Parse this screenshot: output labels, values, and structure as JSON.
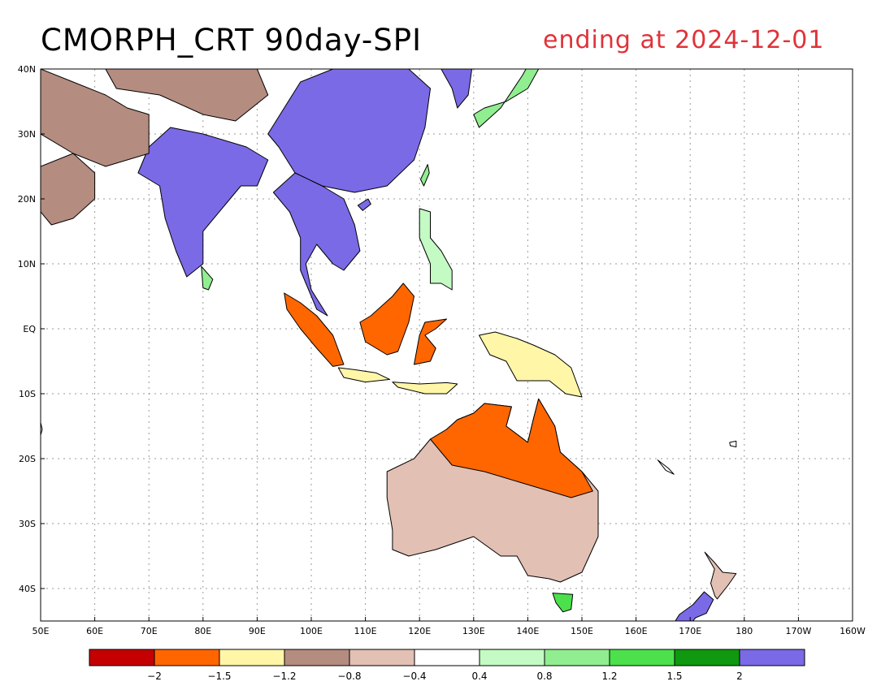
{
  "title": "CMORPH_CRT 90day-SPI",
  "subtitle": "ending at 2024-12-01",
  "map": {
    "lon_min": 50,
    "lon_max": 200,
    "lat_min": -45,
    "lat_max": 40,
    "lon_ticks": [
      {
        "value": 50,
        "label": "50E"
      },
      {
        "value": 60,
        "label": "60E"
      },
      {
        "value": 70,
        "label": "70E"
      },
      {
        "value": 80,
        "label": "80E"
      },
      {
        "value": 90,
        "label": "90E"
      },
      {
        "value": 100,
        "label": "100E"
      },
      {
        "value": 110,
        "label": "110E"
      },
      {
        "value": 120,
        "label": "120E"
      },
      {
        "value": 130,
        "label": "130E"
      },
      {
        "value": 140,
        "label": "140E"
      },
      {
        "value": 150,
        "label": "150E"
      },
      {
        "value": 160,
        "label": "160E"
      },
      {
        "value": 170,
        "label": "170E"
      },
      {
        "value": 180,
        "label": "180"
      },
      {
        "value": 190,
        "label": "170W"
      },
      {
        "value": 200,
        "label": "160W"
      }
    ],
    "lat_ticks": [
      {
        "value": 40,
        "label": "40N"
      },
      {
        "value": 30,
        "label": "30N"
      },
      {
        "value": 20,
        "label": "20N"
      },
      {
        "value": 10,
        "label": "10N"
      },
      {
        "value": 0,
        "label": "EQ"
      },
      {
        "value": -10,
        "label": "10S"
      },
      {
        "value": -20,
        "label": "20S"
      },
      {
        "value": -30,
        "label": "30S"
      },
      {
        "value": -40,
        "label": "40S"
      }
    ],
    "grid": true,
    "regions": [
      {
        "name": "India",
        "category": 10,
        "points": [
          [
            68,
            24
          ],
          [
            72,
            22
          ],
          [
            73,
            17
          ],
          [
            75,
            12
          ],
          [
            77,
            8
          ],
          [
            80,
            10
          ],
          [
            80,
            15
          ],
          [
            84,
            19
          ],
          [
            87,
            22
          ],
          [
            90,
            22
          ],
          [
            92,
            26
          ],
          [
            88,
            28
          ],
          [
            80,
            30
          ],
          [
            74,
            31
          ],
          [
            70,
            28
          ]
        ]
      },
      {
        "name": "China",
        "category": 10,
        "points": [
          [
            92,
            30
          ],
          [
            98,
            38
          ],
          [
            104,
            40
          ],
          [
            118,
            40
          ],
          [
            122,
            37
          ],
          [
            121,
            31
          ],
          [
            119,
            26
          ],
          [
            114,
            22
          ],
          [
            108,
            21
          ],
          [
            102,
            22
          ],
          [
            97,
            24
          ],
          [
            94,
            28
          ]
        ]
      },
      {
        "name": "Indochina",
        "category": 10,
        "points": [
          [
            97,
            24
          ],
          [
            102,
            22
          ],
          [
            106,
            20
          ],
          [
            108,
            16
          ],
          [
            109,
            12
          ],
          [
            106,
            9
          ],
          [
            104,
            10
          ],
          [
            101,
            13
          ],
          [
            99,
            10
          ],
          [
            100,
            6
          ],
          [
            103,
            2
          ],
          [
            101,
            3
          ],
          [
            98,
            9
          ],
          [
            98,
            14
          ],
          [
            96,
            18
          ],
          [
            93,
            21
          ]
        ]
      },
      {
        "name": "Korea",
        "category": 10,
        "points": [
          [
            124,
            40
          ],
          [
            130,
            42
          ],
          [
            129,
            36
          ],
          [
            127,
            34
          ],
          [
            126,
            37
          ]
        ]
      },
      {
        "name": "Japan",
        "category": 7,
        "points": [
          [
            130,
            33
          ],
          [
            132,
            34
          ],
          [
            136,
            35
          ],
          [
            140,
            37
          ],
          [
            142,
            40
          ],
          [
            141,
            42
          ],
          [
            139,
            39
          ],
          [
            135,
            34
          ],
          [
            131,
            31
          ]
        ]
      },
      {
        "name": "Arabia",
        "category": 3,
        "points": [
          [
            50,
            25
          ],
          [
            56,
            27
          ],
          [
            60,
            24
          ],
          [
            60,
            20
          ],
          [
            56,
            17
          ],
          [
            52,
            16
          ],
          [
            50,
            18
          ]
        ]
      },
      {
        "name": "Iran",
        "category": 3,
        "points": [
          [
            50,
            40
          ],
          [
            56,
            38
          ],
          [
            62,
            36
          ],
          [
            66,
            34
          ],
          [
            70,
            33
          ],
          [
            70,
            27
          ],
          [
            62,
            25
          ],
          [
            56,
            27
          ],
          [
            50,
            30
          ]
        ]
      },
      {
        "name": "CentralAsia",
        "category": 3,
        "points": [
          [
            62,
            40
          ],
          [
            76,
            40
          ],
          [
            90,
            40
          ],
          [
            92,
            36
          ],
          [
            86,
            32
          ],
          [
            80,
            33
          ],
          [
            72,
            36
          ],
          [
            64,
            37
          ]
        ]
      },
      {
        "name": "Sri Lanka",
        "category": 7,
        "points": [
          [
            79.7,
            9.6
          ],
          [
            81.8,
            7.6
          ],
          [
            81,
            6
          ],
          [
            80,
            6.3
          ]
        ]
      },
      {
        "name": "Sumatra",
        "category": 1,
        "points": [
          [
            95,
            5.5
          ],
          [
            98,
            4
          ],
          [
            101,
            2
          ],
          [
            104,
            -1
          ],
          [
            106,
            -5.5
          ],
          [
            104,
            -5.8
          ],
          [
            101,
            -3
          ],
          [
            98,
            0
          ],
          [
            95.5,
            3
          ]
        ]
      },
      {
        "name": "Borneo",
        "category": 1,
        "points": [
          [
            109,
            1
          ],
          [
            110,
            -2
          ],
          [
            114,
            -4
          ],
          [
            116,
            -3.5
          ],
          [
            118,
            1
          ],
          [
            119,
            5
          ],
          [
            117,
            7
          ],
          [
            115,
            5
          ],
          [
            111,
            2
          ]
        ]
      },
      {
        "name": "Java",
        "category": 2,
        "points": [
          [
            105,
            -6
          ],
          [
            108,
            -6.3
          ],
          [
            112,
            -6.8
          ],
          [
            114.5,
            -7.8
          ],
          [
            110,
            -8.2
          ],
          [
            106,
            -7.5
          ]
        ]
      },
      {
        "name": "Sulawesi",
        "category": 1,
        "points": [
          [
            119,
            -5.5
          ],
          [
            120,
            -1
          ],
          [
            121,
            1
          ],
          [
            125,
            1.5
          ],
          [
            123,
            0
          ],
          [
            121,
            -1
          ],
          [
            123,
            -3
          ],
          [
            122,
            -5
          ]
        ]
      },
      {
        "name": "Lesser Sunda",
        "category": 2,
        "points": [
          [
            115,
            -8.2
          ],
          [
            120,
            -8.5
          ],
          [
            125,
            -8.3
          ],
          [
            127,
            -8.5
          ],
          [
            125,
            -10
          ],
          [
            121,
            -10
          ],
          [
            116,
            -9
          ]
        ]
      },
      {
        "name": "Philippines",
        "category": 6,
        "points": [
          [
            120,
            18.5
          ],
          [
            122,
            18
          ],
          [
            122,
            14
          ],
          [
            124,
            12
          ],
          [
            126,
            9
          ],
          [
            126,
            6
          ],
          [
            124,
            7
          ],
          [
            122,
            7
          ],
          [
            122,
            10
          ],
          [
            120,
            14
          ]
        ]
      },
      {
        "name": "New Guinea",
        "category": 2,
        "points": [
          [
            131,
            -1
          ],
          [
            134,
            -0.5
          ],
          [
            138,
            -1.5
          ],
          [
            141,
            -2.5
          ],
          [
            145,
            -4
          ],
          [
            148,
            -6
          ],
          [
            150,
            -10.5
          ],
          [
            147,
            -10
          ],
          [
            144,
            -8
          ],
          [
            140,
            -8
          ],
          [
            138,
            -8
          ],
          [
            136,
            -5
          ],
          [
            133,
            -4
          ]
        ]
      },
      {
        "name": "Australia",
        "category": 4,
        "points": [
          [
            114,
            -22
          ],
          [
            114,
            -26
          ],
          [
            115,
            -31
          ],
          [
            115,
            -34
          ],
          [
            118,
            -35
          ],
          [
            123,
            -34
          ],
          [
            130,
            -32
          ],
          [
            135,
            -35
          ],
          [
            138,
            -35
          ],
          [
            140,
            -38
          ],
          [
            144,
            -38.5
          ],
          [
            146,
            -39
          ],
          [
            150,
            -37.5
          ],
          [
            153,
            -32
          ],
          [
            153,
            -25
          ],
          [
            150,
            -22
          ],
          [
            146,
            -19
          ],
          [
            145,
            -15
          ],
          [
            142,
            -10.8
          ],
          [
            141,
            -14
          ],
          [
            140,
            -17.5
          ],
          [
            136,
            -15
          ],
          [
            137,
            -12
          ],
          [
            132,
            -11.5
          ],
          [
            130,
            -13
          ],
          [
            127,
            -14
          ],
          [
            125,
            -15.5
          ],
          [
            122,
            -17
          ],
          [
            119,
            -20
          ]
        ]
      },
      {
        "name": "North Australia",
        "category": 1,
        "points": [
          [
            122,
            -17
          ],
          [
            125,
            -15.5
          ],
          [
            127,
            -14
          ],
          [
            130,
            -13
          ],
          [
            132,
            -11.5
          ],
          [
            137,
            -12
          ],
          [
            136,
            -15
          ],
          [
            140,
            -17.5
          ],
          [
            141,
            -14
          ],
          [
            142,
            -10.8
          ],
          [
            145,
            -15
          ],
          [
            146,
            -19
          ],
          [
            150,
            -22
          ],
          [
            152,
            -25
          ],
          [
            148,
            -26
          ],
          [
            140,
            -24
          ],
          [
            132,
            -22
          ],
          [
            126,
            -21
          ]
        ]
      },
      {
        "name": "Tasmania",
        "category": 8,
        "points": [
          [
            144.6,
            -40.7
          ],
          [
            148.3,
            -40.9
          ],
          [
            148,
            -43.2
          ],
          [
            146.5,
            -43.6
          ],
          [
            145.2,
            -42.2
          ]
        ]
      },
      {
        "name": "NZ North",
        "category": 4,
        "points": [
          [
            172.7,
            -34.4
          ],
          [
            174.5,
            -36
          ],
          [
            176,
            -37.5
          ],
          [
            178.5,
            -37.7
          ],
          [
            177,
            -39.5
          ],
          [
            175,
            -41.6
          ],
          [
            174.6,
            -41.2
          ],
          [
            173.8,
            -39.2
          ],
          [
            174.5,
            -37
          ]
        ]
      },
      {
        "name": "NZ South",
        "category": 10,
        "points": [
          [
            172.6,
            -40.5
          ],
          [
            174.3,
            -41.7
          ],
          [
            173,
            -43.8
          ],
          [
            171,
            -44.5
          ],
          [
            169,
            -46.5
          ],
          [
            166.5,
            -46
          ],
          [
            168,
            -44
          ],
          [
            170.5,
            -42.5
          ]
        ]
      },
      {
        "name": "New Caledonia",
        "category": 5,
        "points": [
          [
            164,
            -20.2
          ],
          [
            166,
            -21.5
          ],
          [
            167,
            -22.4
          ],
          [
            165.5,
            -21.8
          ]
        ]
      },
      {
        "name": "Fiji",
        "category": 5,
        "points": [
          [
            177.3,
            -17.5
          ],
          [
            178.5,
            -17.3
          ],
          [
            178.5,
            -18.2
          ],
          [
            177.4,
            -18
          ]
        ]
      },
      {
        "name": "Hainan",
        "category": 10,
        "points": [
          [
            108.6,
            19
          ],
          [
            110.5,
            20
          ],
          [
            111,
            19.2
          ],
          [
            109.5,
            18.2
          ]
        ]
      },
      {
        "name": "Taiwan",
        "category": 7,
        "points": [
          [
            120.2,
            23
          ],
          [
            121.5,
            25.3
          ],
          [
            121.8,
            24
          ],
          [
            120.8,
            22
          ]
        ]
      },
      {
        "name": "Madagascar",
        "category": 6,
        "points": [
          [
            49.3,
            -12
          ],
          [
            50.3,
            -15.5
          ],
          [
            49.5,
            -17.8
          ],
          [
            48,
            -14
          ]
        ]
      }
    ]
  },
  "colorbar": {
    "colors": [
      "#c40000",
      "#ff6600",
      "#fff6a8",
      "#b48c80",
      "#e2c0b4",
      "#ffffff",
      "#c4fac4",
      "#90ee90",
      "#4ce04c",
      "#109810",
      "#7a6ae6"
    ],
    "labels": [
      "-2",
      "-1.5",
      "-1.2",
      "-0.8",
      "-0.4",
      "0.4",
      "0.8",
      "1.2",
      "1.5",
      "2"
    ]
  }
}
